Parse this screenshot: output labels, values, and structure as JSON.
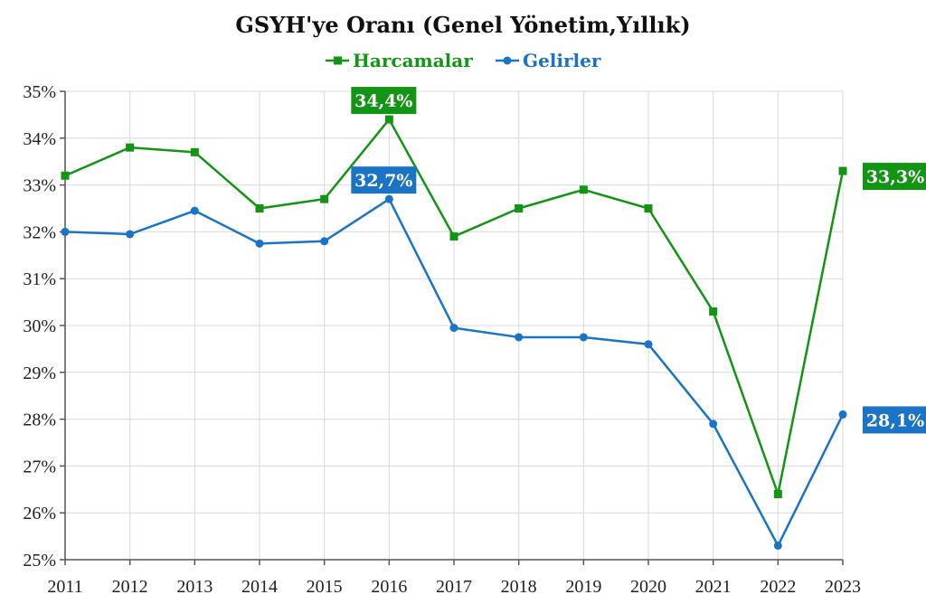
{
  "chart_data": {
    "type": "line",
    "title": "GSYH'ye Oranı (Genel Yönetim,Yıllık)",
    "xlabel": "",
    "ylabel": "",
    "x": [
      "2011",
      "2012",
      "2013",
      "2014",
      "2015",
      "2016",
      "2017",
      "2018",
      "2019",
      "2020",
      "2021",
      "2022",
      "2023"
    ],
    "ylim": [
      25,
      35
    ],
    "yticks": [
      "25%",
      "26%",
      "27%",
      "28%",
      "29%",
      "30%",
      "31%",
      "32%",
      "33%",
      "34%",
      "35%"
    ],
    "grid": true,
    "legend": "top-center",
    "series": [
      {
        "name": "Harcamalar",
        "color": "#149414",
        "marker": "square",
        "values": [
          33.2,
          33.8,
          33.7,
          32.5,
          32.7,
          34.4,
          31.9,
          32.5,
          32.9,
          32.5,
          30.3,
          26.4,
          33.3
        ],
        "labels": [
          {
            "index": 5,
            "text": "34,4%"
          },
          {
            "index": 12,
            "text": "33,3%"
          }
        ]
      },
      {
        "name": "Gelirler",
        "color": "#1a73c4",
        "marker": "circle",
        "values": [
          32.0,
          31.95,
          32.45,
          31.75,
          31.8,
          32.7,
          29.95,
          29.75,
          29.75,
          29.6,
          27.9,
          25.3,
          28.1
        ],
        "labels": [
          {
            "index": 5,
            "text": "32,7%"
          },
          {
            "index": 12,
            "text": "28,1%"
          }
        ]
      }
    ]
  }
}
